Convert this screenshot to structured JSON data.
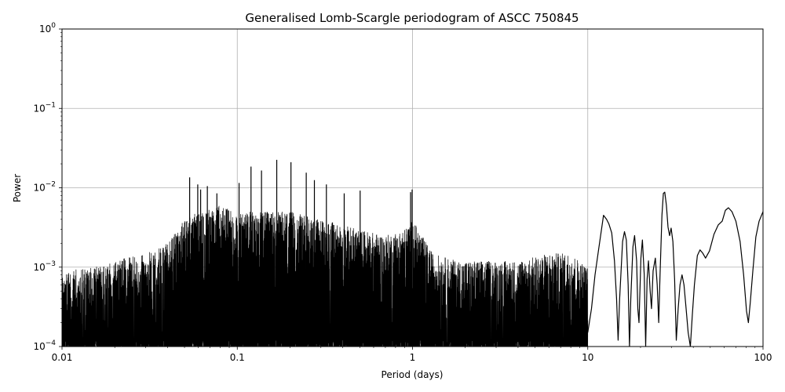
{
  "chart_data": {
    "type": "line",
    "title": "Generalised Lomb-Scargle periodogram of ASCC 750845",
    "xlabel": "Period (days)",
    "ylabel": "Power",
    "xscale": "log",
    "yscale": "log",
    "xlim": [
      0.01,
      100
    ],
    "ylim": [
      0.0001,
      1
    ],
    "grid": true,
    "line_color": "#000000",
    "x_ticks": [
      {
        "value": 0.01,
        "label": "0.01"
      },
      {
        "value": 0.1,
        "label": "0.1"
      },
      {
        "value": 1,
        "label": "1"
      },
      {
        "value": 10,
        "label": "10"
      },
      {
        "value": 100,
        "label": "100"
      }
    ],
    "y_ticks": [
      {
        "value": 0.0001,
        "base": "10",
        "exp": "−4"
      },
      {
        "value": 0.001,
        "base": "10",
        "exp": "−3"
      },
      {
        "value": 0.01,
        "base": "10",
        "exp": "−2"
      },
      {
        "value": 0.1,
        "base": "10",
        "exp": "−1"
      },
      {
        "value": 1,
        "base": "10",
        "exp": "0"
      }
    ],
    "dense_envelope": [
      [
        0.01,
        0.0009
      ],
      [
        0.012,
        0.00095
      ],
      [
        0.015,
        0.001
      ],
      [
        0.02,
        0.0012
      ],
      [
        0.03,
        0.0015
      ],
      [
        0.04,
        0.002
      ],
      [
        0.05,
        0.004
      ],
      [
        0.06,
        0.005
      ],
      [
        0.08,
        0.006
      ],
      [
        0.1,
        0.005
      ],
      [
        0.15,
        0.005
      ],
      [
        0.2,
        0.005
      ],
      [
        0.3,
        0.004
      ],
      [
        0.5,
        0.003
      ],
      [
        0.7,
        0.0025
      ],
      [
        0.9,
        0.003
      ],
      [
        1.0,
        0.004
      ],
      [
        1.3,
        0.0015
      ],
      [
        1.8,
        0.0012
      ],
      [
        2.5,
        0.0012
      ],
      [
        4,
        0.0012
      ],
      [
        6,
        0.0015
      ],
      [
        8,
        0.0015
      ],
      [
        10,
        0.001
      ]
    ],
    "peaks": [
      [
        0.0535,
        0.0135
      ],
      [
        0.0595,
        0.011
      ],
      [
        0.0618,
        0.0095
      ],
      [
        0.0675,
        0.0105
      ],
      [
        0.0765,
        0.0085
      ],
      [
        0.1024,
        0.0115
      ],
      [
        0.1198,
        0.0185
      ],
      [
        0.1375,
        0.0165
      ],
      [
        0.168,
        0.0225
      ],
      [
        0.2025,
        0.021
      ],
      [
        0.2475,
        0.0155
      ],
      [
        0.2755,
        0.0125
      ],
      [
        0.3225,
        0.011
      ],
      [
        0.4075,
        0.0085
      ],
      [
        0.5025,
        0.0092
      ],
      [
        0.995,
        0.0095
      ],
      [
        0.975,
        0.0088
      ]
    ],
    "smooth_curve": [
      [
        10,
        0.00015
      ],
      [
        10.5,
        0.0003
      ],
      [
        11,
        0.0008
      ],
      [
        11.5,
        0.0016
      ],
      [
        12.3,
        0.0045
      ],
      [
        12.8,
        0.004
      ],
      [
        13.2,
        0.0035
      ],
      [
        13.7,
        0.0027
      ],
      [
        14.2,
        0.0012
      ],
      [
        14.6,
        0.0004
      ],
      [
        14.9,
        0.00012
      ],
      [
        15.2,
        0.0004
      ],
      [
        15.8,
        0.0021
      ],
      [
        16.2,
        0.0028
      ],
      [
        16.6,
        0.0022
      ],
      [
        17.0,
        0.0006
      ],
      [
        17.3,
        0.0001
      ],
      [
        17.6,
        0.0004
      ],
      [
        18.1,
        0.0018
      ],
      [
        18.5,
        0.0025
      ],
      [
        19.0,
        0.0012
      ],
      [
        19.3,
        0.0003
      ],
      [
        19.6,
        0.0002
      ],
      [
        20.1,
        0.0013
      ],
      [
        20.5,
        0.0022
      ],
      [
        21.0,
        0.0008
      ],
      [
        21.4,
        0.0001
      ],
      [
        21.8,
        0.0007
      ],
      [
        22.2,
        0.0012
      ],
      [
        22.7,
        0.0005
      ],
      [
        23.1,
        0.0003
      ],
      [
        23.6,
        0.0009
      ],
      [
        24.3,
        0.0013
      ],
      [
        24.9,
        0.0006
      ],
      [
        25.4,
        0.0002
      ],
      [
        25.8,
        0.0007
      ],
      [
        26.5,
        0.0045
      ],
      [
        27.0,
        0.0085
      ],
      [
        27.5,
        0.0088
      ],
      [
        28.1,
        0.006
      ],
      [
        28.7,
        0.0032
      ],
      [
        29.3,
        0.0025
      ],
      [
        29.9,
        0.0031
      ],
      [
        30.6,
        0.0021
      ],
      [
        31.3,
        0.0007
      ],
      [
        32.0,
        0.00012
      ],
      [
        32.8,
        0.0003
      ],
      [
        33.6,
        0.0006
      ],
      [
        34.5,
        0.0008
      ],
      [
        35.4,
        0.0006
      ],
      [
        36.4,
        0.0003
      ],
      [
        37.4,
        0.00015
      ],
      [
        38.5,
        0.0001
      ],
      [
        39.5,
        0.00025
      ],
      [
        40.6,
        0.0006
      ],
      [
        42.2,
        0.0014
      ],
      [
        43.7,
        0.00165
      ],
      [
        45.3,
        0.0015
      ],
      [
        47.0,
        0.0013
      ],
      [
        49.5,
        0.0016
      ],
      [
        52.5,
        0.0026
      ],
      [
        55.5,
        0.0034
      ],
      [
        58.5,
        0.0038
      ],
      [
        61.0,
        0.0052
      ],
      [
        63.5,
        0.0056
      ],
      [
        66.5,
        0.005
      ],
      [
        70.0,
        0.0038
      ],
      [
        74.0,
        0.0021
      ],
      [
        77.5,
        0.0008
      ],
      [
        80.5,
        0.00028
      ],
      [
        82.5,
        0.0002
      ],
      [
        84.5,
        0.00035
      ],
      [
        87.5,
        0.0009
      ],
      [
        91.0,
        0.0024
      ],
      [
        95.0,
        0.0038
      ],
      [
        100,
        0.005
      ]
    ]
  }
}
